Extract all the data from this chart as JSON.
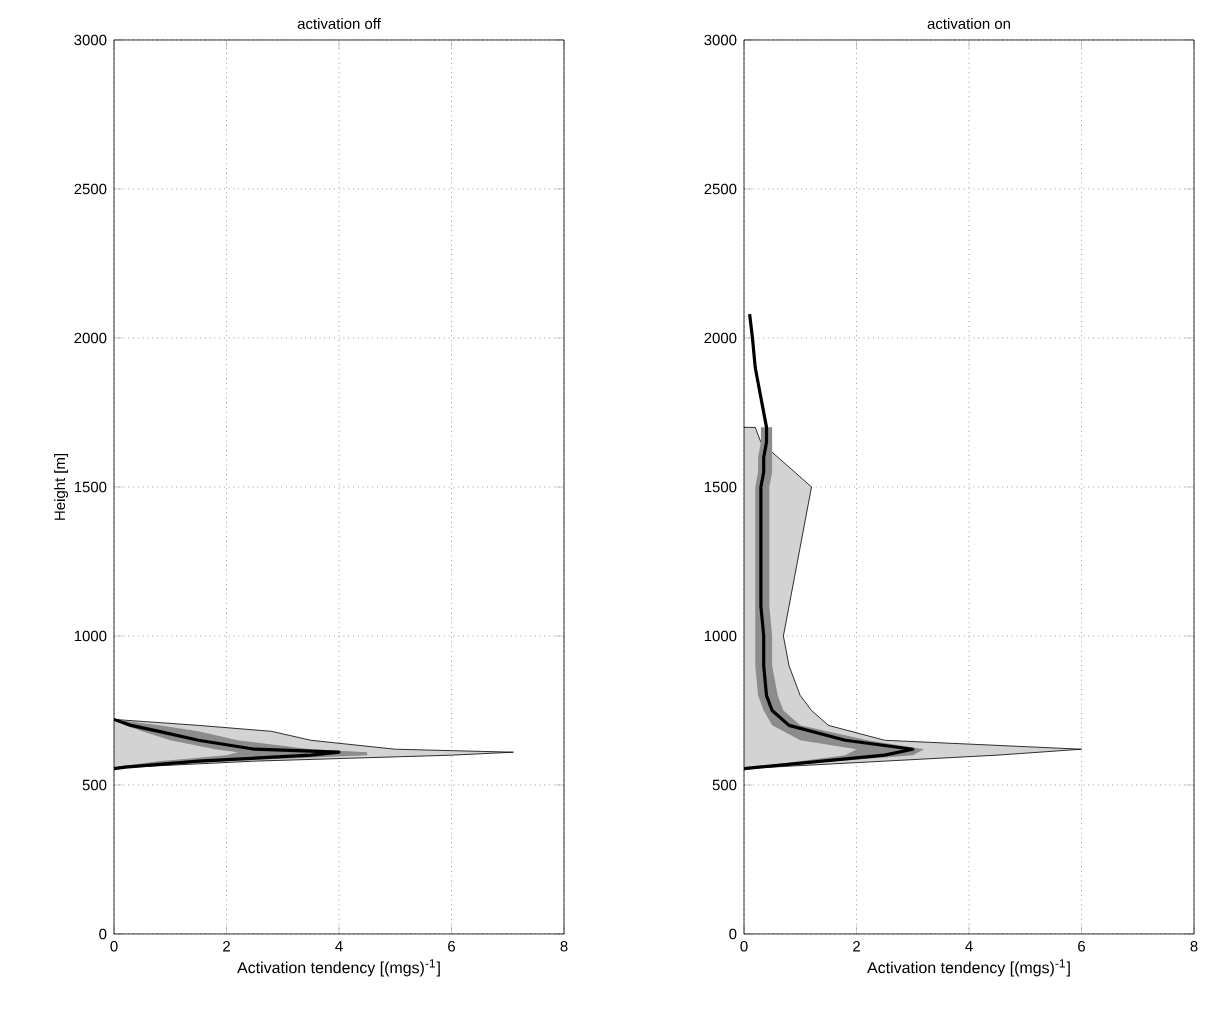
{
  "chart_data": [
    {
      "type": "line",
      "orientation": "horizontal",
      "title": "activation off",
      "xlabel": "Activation tendency [(mgs)$^{-1}$]",
      "ylabel": "Height [m]",
      "x": [
        555,
        560,
        580,
        600,
        610,
        620,
        650,
        680,
        700,
        720
      ],
      "series": [
        {
          "type": "area",
          "color": "#d3d3d3",
          "values": [
            0,
            0.3,
            2.5,
            6,
            7.1,
            5,
            3.5,
            2.8,
            1.5,
            0
          ]
        },
        {
          "color": "#000000",
          "values": [
            0,
            0.2,
            1.5,
            3.5,
            4,
            2.5,
            1.5,
            0.8,
            0.3,
            0
          ],
          "lower": [
            0,
            0,
            0.8,
            2,
            2.2,
            1.8,
            1,
            0.5,
            0.2,
            0
          ],
          "upper": [
            0,
            0.2,
            2,
            4.5,
            4.5,
            3.5,
            2.2,
            1.5,
            0.8,
            0
          ]
        }
      ],
      "xlim": [
        0,
        8
      ],
      "xticks": [
        0,
        2,
        4,
        6,
        8
      ],
      "ylim": [
        0,
        3000
      ],
      "yticks": [
        0,
        500,
        1000,
        1500,
        2000,
        2500,
        3000
      ],
      "grid": true
    },
    {
      "type": "line",
      "orientation": "horizontal",
      "title": "activation on",
      "xlabel": "Activation tendency [(mgs)$^{-1}$]",
      "x": [
        555,
        600,
        620,
        650,
        700,
        750,
        800,
        900,
        1000,
        1100,
        1200,
        1300,
        1400,
        1500,
        1550,
        1600,
        1650,
        1700,
        1800,
        1900,
        2000,
        2080
      ],
      "series": [
        {
          "type": "area",
          "color": "#d3d3d3",
          "values": [
            0,
            4.5,
            6,
            2.5,
            1.5,
            1.2,
            1,
            0.8,
            0.7,
            0.8,
            0.9,
            1,
            1.1,
            1.2,
            0.9,
            0.6,
            0.3,
            0.2,
            null,
            null,
            null,
            null
          ]
        },
        {
          "color": "#000000",
          "values": [
            0,
            2.5,
            3,
            1.8,
            0.8,
            0.5,
            0.4,
            0.35,
            0.35,
            0.3,
            0.3,
            0.3,
            0.3,
            0.3,
            0.35,
            0.35,
            0.4,
            0.4,
            0.3,
            0.2,
            0.15,
            0.1
          ],
          "lower": [
            0,
            1.8,
            2,
            1,
            0.5,
            0.35,
            0.25,
            0.2,
            0.2,
            0.2,
            0.2,
            0.2,
            0.2,
            0.2,
            0.25,
            0.25,
            0.3,
            0.3,
            null,
            null,
            null,
            null
          ],
          "upper": [
            0,
            3,
            3.2,
            2.2,
            1,
            0.7,
            0.6,
            0.5,
            0.5,
            0.45,
            0.45,
            0.45,
            0.45,
            0.45,
            0.5,
            0.5,
            0.5,
            0.5,
            null,
            null,
            null,
            null
          ]
        }
      ],
      "xlim": [
        0,
        8
      ],
      "xticks": [
        0,
        2,
        4,
        6,
        8
      ],
      "ylim": [
        0,
        3000
      ],
      "yticks": [
        0,
        500,
        1000,
        1500,
        2000,
        2500,
        3000
      ],
      "grid": true
    }
  ]
}
